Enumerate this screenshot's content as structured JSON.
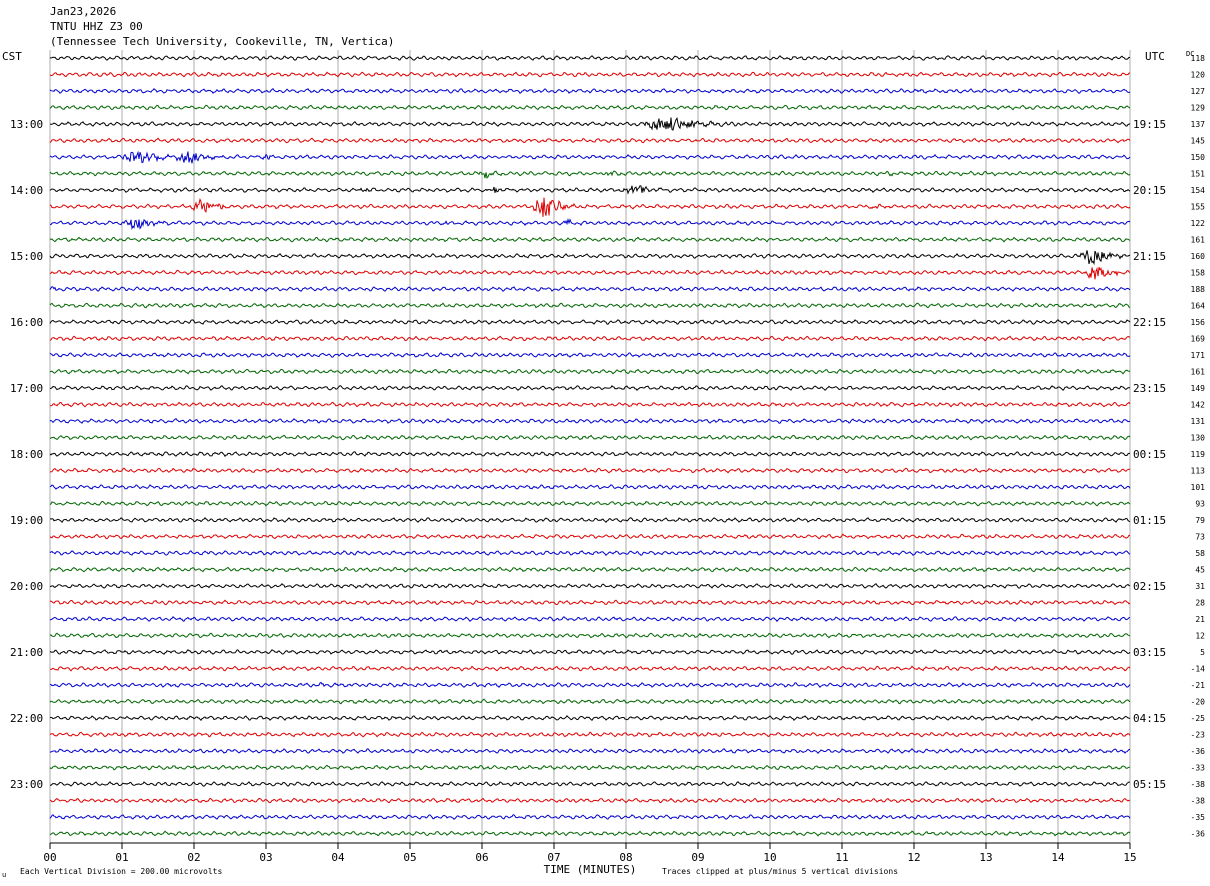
{
  "header": {
    "date": "Jan23,2026",
    "station": "TNTU HHZ Z3 00",
    "location": "(Tennessee Tech University, Cookeville, TN, Vertica)"
  },
  "left_zone": "CST",
  "right_zone": "UTC",
  "dc_header": "DC",
  "footer": {
    "scale": "Each Vertical Division =  200.00 microvolts",
    "clip_note": "Traces clipped at plus/minus 5 vertical divisions",
    "corner_mark": "u"
  },
  "colors": [
    "#000000",
    "#dd0000",
    "#0000cc",
    "#006600"
  ],
  "chart_data": {
    "type": "line",
    "title": "TNTU HHZ Z3 00",
    "xlabel": "TIME (MINUTES)",
    "ylabel": "",
    "xlim": [
      0,
      15
    ],
    "x_ticks": [
      "00",
      "01",
      "02",
      "03",
      "04",
      "05",
      "06",
      "07",
      "08",
      "09",
      "10",
      "11",
      "12",
      "13",
      "14",
      "15"
    ],
    "rows": 48,
    "left_labels": [
      {
        "row": 4,
        "text": "13:00"
      },
      {
        "row": 8,
        "text": "14:00"
      },
      {
        "row": 12,
        "text": "15:00"
      },
      {
        "row": 16,
        "text": "16:00"
      },
      {
        "row": 20,
        "text": "17:00"
      },
      {
        "row": 24,
        "text": "18:00"
      },
      {
        "row": 28,
        "text": "19:00"
      },
      {
        "row": 32,
        "text": "20:00"
      },
      {
        "row": 36,
        "text": "21:00"
      },
      {
        "row": 40,
        "text": "22:00"
      },
      {
        "row": 44,
        "text": "23:00"
      }
    ],
    "right_labels": [
      {
        "row": 4,
        "text": "19:15"
      },
      {
        "row": 8,
        "text": "20:15"
      },
      {
        "row": 12,
        "text": "21:15"
      },
      {
        "row": 16,
        "text": "22:15"
      },
      {
        "row": 20,
        "text": "23:15"
      },
      {
        "row": 24,
        "text": "00:15"
      },
      {
        "row": 28,
        "text": "01:15"
      },
      {
        "row": 32,
        "text": "02:15"
      },
      {
        "row": 36,
        "text": "03:15"
      },
      {
        "row": 40,
        "text": "04:15"
      },
      {
        "row": 44,
        "text": "05:15"
      }
    ],
    "dc_offsets": [
      118,
      120,
      127,
      129,
      137,
      145,
      150,
      151,
      154,
      155,
      122,
      161,
      160,
      158,
      188,
      164,
      156,
      169,
      171,
      161,
      149,
      142,
      131,
      130,
      119,
      113,
      101,
      93,
      79,
      73,
      58,
      45,
      31,
      28,
      21,
      12,
      5,
      -14,
      -21,
      -20,
      -25,
      -23,
      -36,
      -33,
      -38,
      -38,
      -35,
      -36
    ],
    "events": [
      {
        "row": 4,
        "t": 8.55,
        "amp": 3.0,
        "dur": 1.1
      },
      {
        "row": 6,
        "t": 1.2,
        "amp": 2.0,
        "dur": 0.8
      },
      {
        "row": 6,
        "t": 1.9,
        "amp": 2.5,
        "dur": 0.6
      },
      {
        "row": 6,
        "t": 3.0,
        "amp": 1.0,
        "dur": 0.25
      },
      {
        "row": 7,
        "t": 6.05,
        "amp": 1.2,
        "dur": 0.4
      },
      {
        "row": 7,
        "t": 7.75,
        "amp": 1.2,
        "dur": 0.25
      },
      {
        "row": 7,
        "t": 11.65,
        "amp": 0.5,
        "dur": 0.15
      },
      {
        "row": 8,
        "t": 4.35,
        "amp": 0.7,
        "dur": 0.35
      },
      {
        "row": 8,
        "t": 6.15,
        "amp": 1.2,
        "dur": 0.3
      },
      {
        "row": 8,
        "t": 8.1,
        "amp": 2.5,
        "dur": 0.55
      },
      {
        "row": 9,
        "t": 2.1,
        "amp": 3.0,
        "dur": 0.5
      },
      {
        "row": 9,
        "t": 6.85,
        "amp": 4.0,
        "dur": 0.55
      },
      {
        "row": 9,
        "t": 11.45,
        "amp": 0.6,
        "dur": 0.35
      },
      {
        "row": 10,
        "t": 1.15,
        "amp": 3.0,
        "dur": 0.5
      },
      {
        "row": 10,
        "t": 5.5,
        "amp": 0.5,
        "dur": 0.35
      },
      {
        "row": 10,
        "t": 7.2,
        "amp": 1.5,
        "dur": 0.25
      },
      {
        "row": 12,
        "t": 14.45,
        "amp": 3.5,
        "dur": 0.55
      },
      {
        "row": 13,
        "t": 14.5,
        "amp": 3.0,
        "dur": 0.5
      },
      {
        "row": 14,
        "t": 0.05,
        "amp": 0.8,
        "dur": 0.15
      },
      {
        "row": 38,
        "t": 1.55,
        "amp": 0.4,
        "dur": 0.15
      },
      {
        "row": 38,
        "t": 3.75,
        "amp": 0.7,
        "dur": 0.15
      }
    ]
  }
}
